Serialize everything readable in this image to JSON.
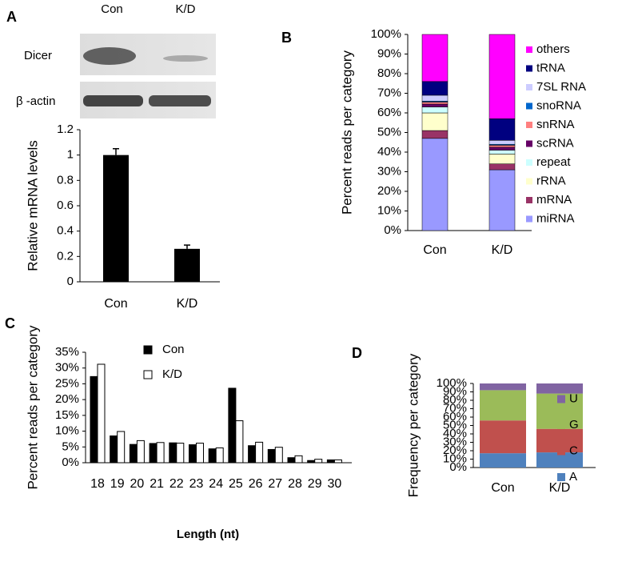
{
  "panels": [
    "A",
    "B",
    "C",
    "D"
  ],
  "blot": {
    "columns": [
      "Con",
      "K/D"
    ],
    "rows": [
      "Dicer",
      "β -actin"
    ]
  },
  "chart_data": [
    {
      "type": "bar",
      "ylabel": "Relative mRNA levels",
      "categories": [
        "Con",
        "K/D"
      ],
      "values": [
        1.0,
        0.26
      ],
      "errors": [
        0.05,
        0.03
      ],
      "color": "#000000",
      "ylim": [
        0,
        1.2
      ],
      "yticks": [
        0,
        0.2,
        0.4,
        0.6,
        0.8,
        1,
        1.2
      ]
    },
    {
      "type": "stacked_bar",
      "ylabel": "Percent reads per category",
      "categories": [
        "Con",
        "K/D"
      ],
      "series": [
        {
          "name": "miRNA",
          "color": "#9999ff",
          "values": [
            47,
            31
          ]
        },
        {
          "name": "mRNA",
          "color": "#993366",
          "values": [
            4,
            3
          ]
        },
        {
          "name": "rRNA",
          "color": "#ffffcc",
          "values": [
            9,
            5
          ]
        },
        {
          "name": "repeat",
          "color": "#ccffff",
          "values": [
            3,
            2
          ]
        },
        {
          "name": "scRNA",
          "color": "#660066",
          "values": [
            1.5,
            1.5
          ]
        },
        {
          "name": "snRNA",
          "color": "#ff8080",
          "values": [
            1,
            1
          ]
        },
        {
          "name": "snoRNA",
          "color": "#0066cc",
          "values": [
            0.5,
            0.5
          ]
        },
        {
          "name": "7SL RNA",
          "color": "#ccccff",
          "values": [
            3,
            2
          ]
        },
        {
          "name": "tRNA",
          "color": "#000080",
          "values": [
            7,
            11
          ]
        },
        {
          "name": "others",
          "color": "#ff00ff",
          "values": [
            24,
            43
          ]
        }
      ],
      "ylim": [
        0,
        100
      ],
      "yticks": [
        {
          "value": 0,
          "label": "0%"
        },
        {
          "value": 10,
          "label": "10%"
        },
        {
          "value": 20,
          "label": "20%"
        },
        {
          "value": 30,
          "label": "30%"
        },
        {
          "value": 40,
          "label": "40%"
        },
        {
          "value": 50,
          "label": "50%"
        },
        {
          "value": 60,
          "label": "60%"
        },
        {
          "value": 70,
          "label": "70%"
        },
        {
          "value": 80,
          "label": "80%"
        },
        {
          "value": 90,
          "label": "90%"
        },
        {
          "value": 100,
          "label": "100%"
        }
      ]
    },
    {
      "type": "grouped_bar",
      "ylabel": "Percent reads per category",
      "xlabel": "Length (nt)",
      "categories": [
        18,
        19,
        20,
        21,
        22,
        23,
        24,
        25,
        26,
        27,
        28,
        29,
        30
      ],
      "series": [
        {
          "name": "Con",
          "color": "#000000",
          "values": [
            27.3,
            8.5,
            5.8,
            6.1,
            6.3,
            5.7,
            4.4,
            23.6,
            5.4,
            4.2,
            1.6,
            0.7,
            0.9
          ]
        },
        {
          "name": "K/D",
          "color": "#ffffff",
          "values": [
            31.2,
            9.9,
            7.0,
            6.4,
            6.2,
            6.2,
            4.7,
            13.3,
            6.5,
            4.9,
            2.2,
            1.1,
            0.9
          ]
        }
      ],
      "ylim": [
        0,
        35
      ],
      "yticks": [
        {
          "value": 0,
          "label": "0%"
        },
        {
          "value": 5,
          "label": "5%"
        },
        {
          "value": 10,
          "label": "10%"
        },
        {
          "value": 15,
          "label": "15%"
        },
        {
          "value": 20,
          "label": "20%"
        },
        {
          "value": 25,
          "label": "25%"
        },
        {
          "value": 30,
          "label": "30%"
        },
        {
          "value": 35,
          "label": "35%"
        }
      ]
    },
    {
      "type": "stacked_bar",
      "ylabel": "Frequency per category",
      "categories": [
        "Con",
        "K/D"
      ],
      "series": [
        {
          "name": "A",
          "color": "#4f81bd",
          "values": [
            17,
            18
          ]
        },
        {
          "name": "C",
          "color": "#c0504d",
          "values": [
            39,
            28
          ]
        },
        {
          "name": "G",
          "color": "#9bbb59",
          "values": [
            36,
            42
          ]
        },
        {
          "name": "U",
          "color": "#8064a2",
          "values": [
            8,
            12
          ]
        }
      ],
      "ylim": [
        0,
        100
      ],
      "yticks": [
        {
          "value": 0,
          "label": "0%"
        },
        {
          "value": 10,
          "label": "10%"
        },
        {
          "value": 20,
          "label": "20%"
        },
        {
          "value": 30,
          "label": "30%"
        },
        {
          "value": 40,
          "label": "40%"
        },
        {
          "value": 50,
          "label": "50%"
        },
        {
          "value": 60,
          "label": "60%"
        },
        {
          "value": 70,
          "label": "70%"
        },
        {
          "value": 80,
          "label": "80%"
        },
        {
          "value": 90,
          "label": "90%"
        },
        {
          "value": 100,
          "label": "100%"
        }
      ]
    }
  ]
}
